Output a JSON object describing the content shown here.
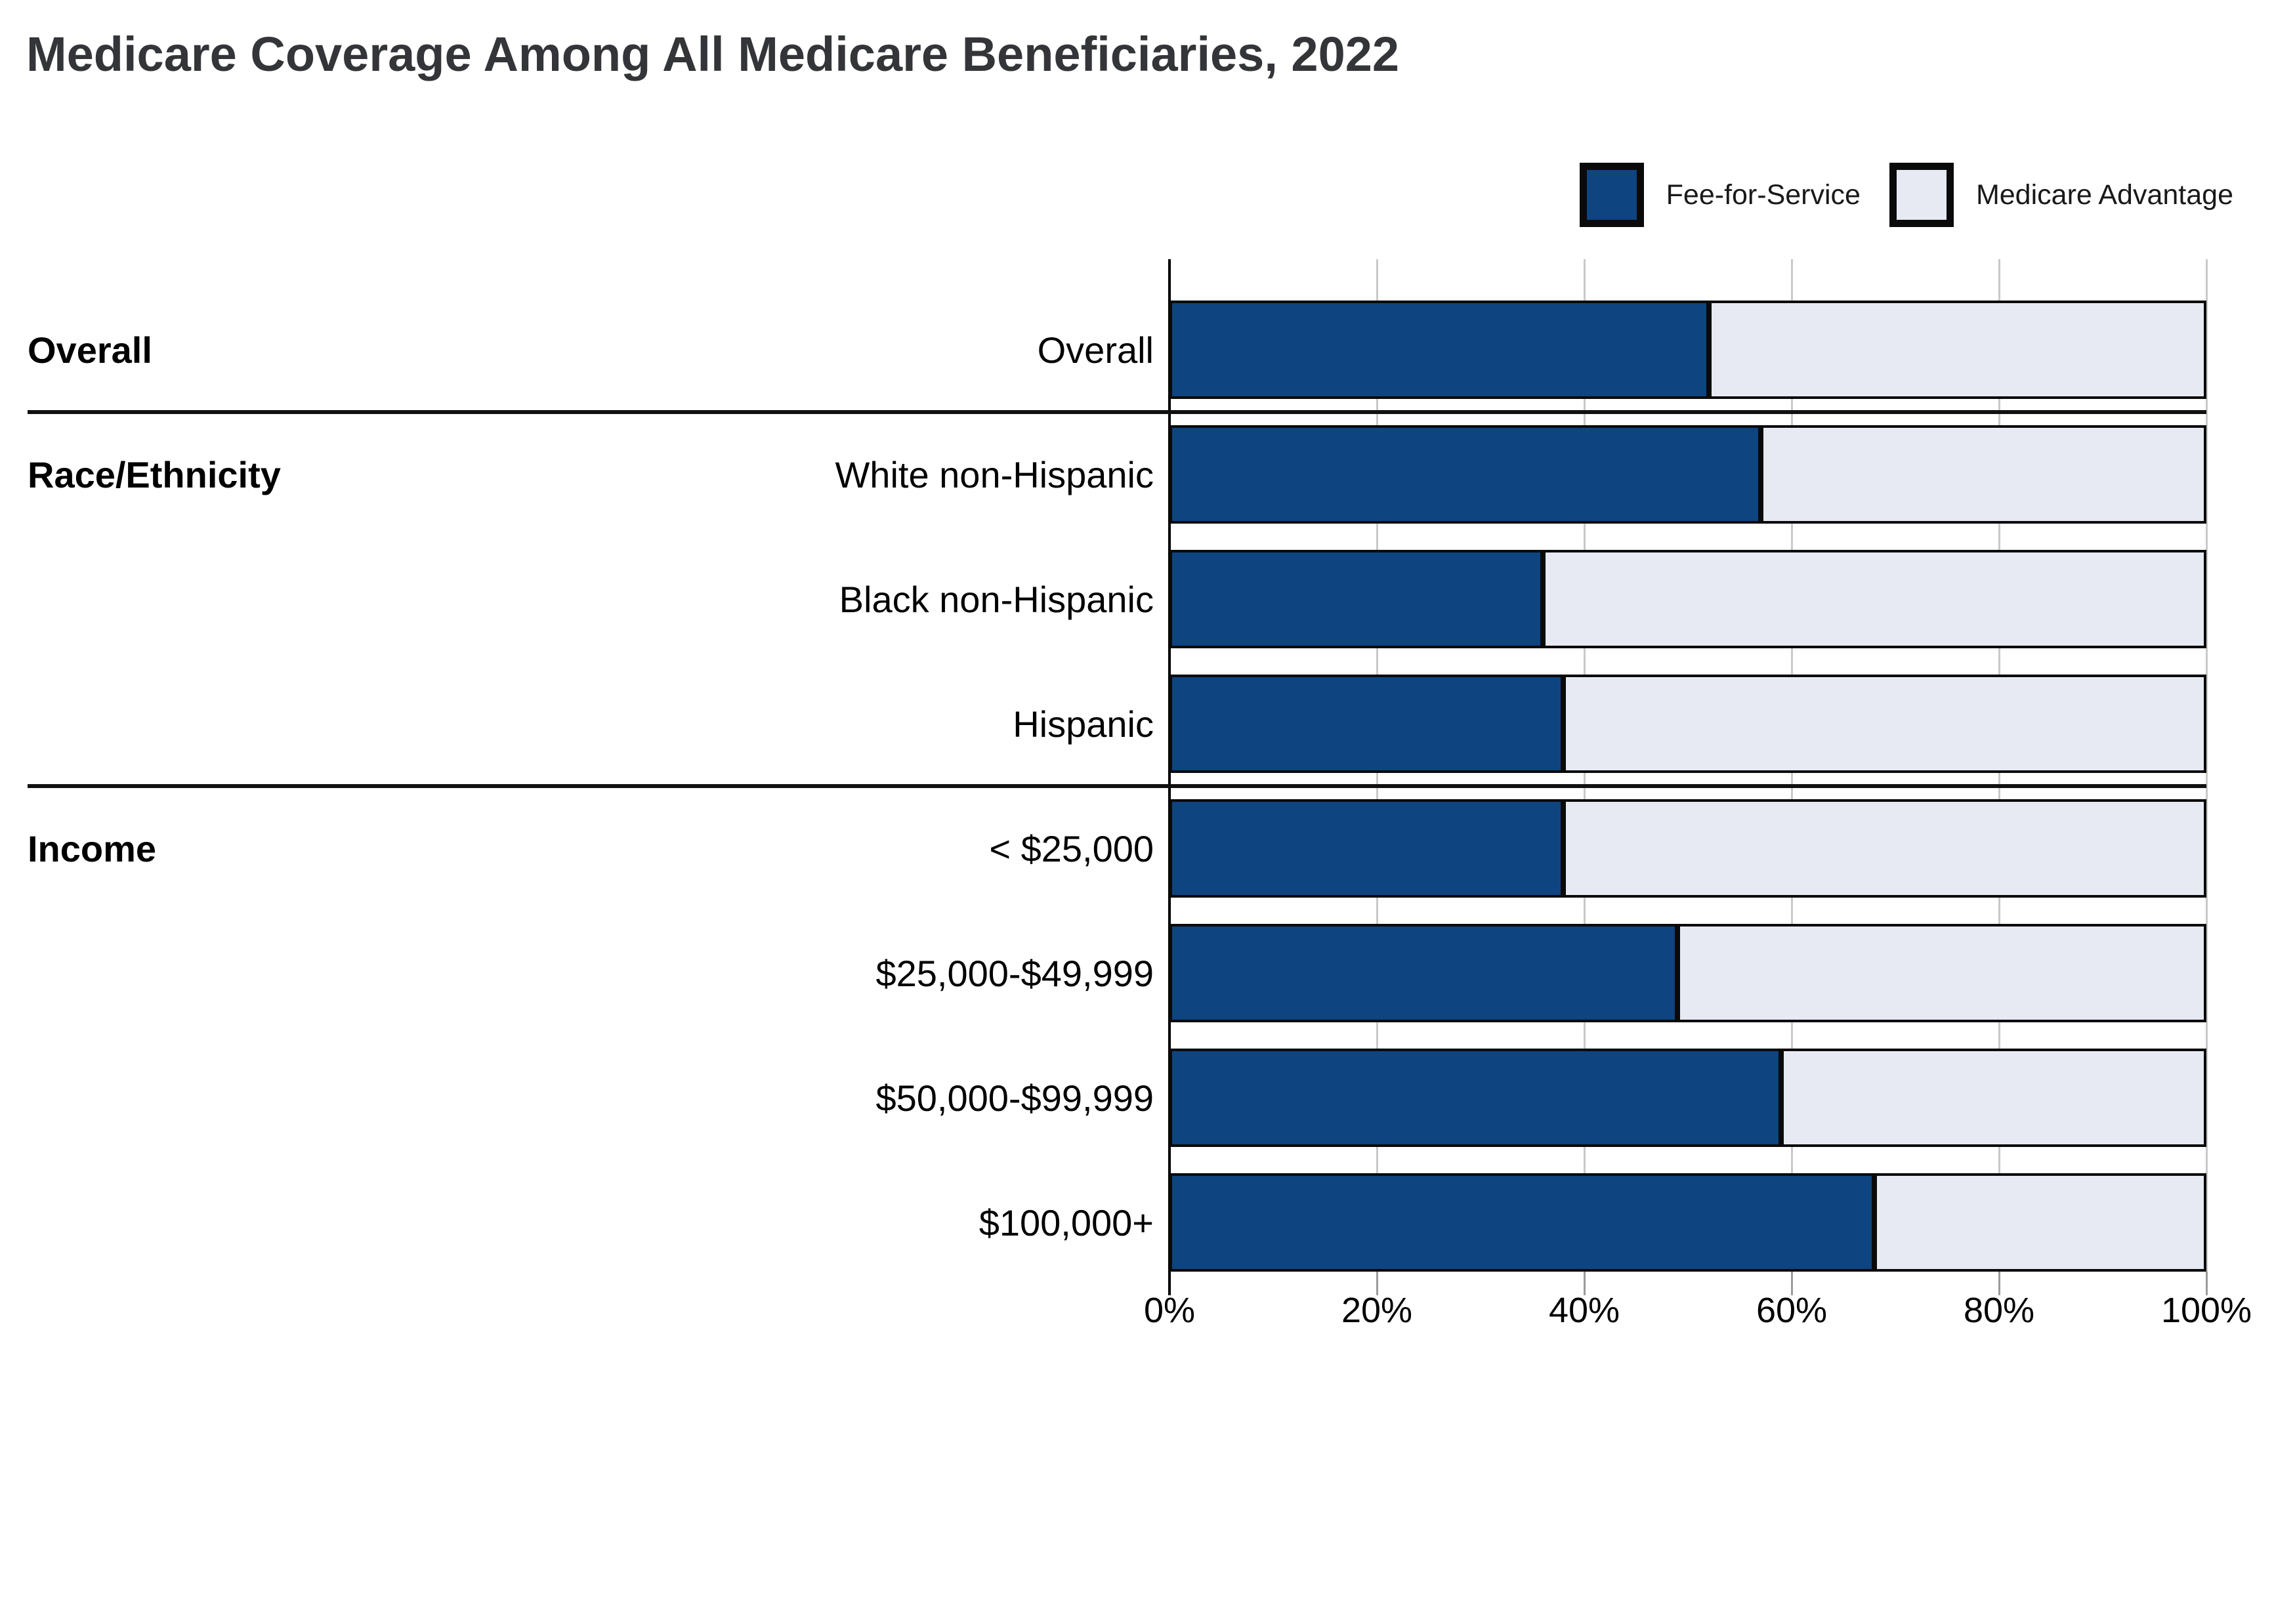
{
  "title": "Medicare Coverage Among All Medicare Beneficiaries, 2022",
  "legend": {
    "items": [
      {
        "label": "Fee-for-Service",
        "color": "#0E4480"
      },
      {
        "label": "Medicare Advantage",
        "color": "#E7EAF3"
      }
    ]
  },
  "colors": {
    "fee_for_service": "#0E4480",
    "medicare_advantage": "#E7EAF3",
    "bar_border": "#0a0a0a",
    "gridline": "#c9c9c9",
    "divider": "#111111",
    "title_text": "#333538"
  },
  "chart_data": {
    "type": "bar",
    "orientation": "horizontal",
    "stacked": true,
    "title": "Medicare Coverage Among All Medicare Beneficiaries, 2022",
    "categories": [
      "Overall",
      "White non-Hispanic",
      "Black non-Hispanic",
      "Hispanic",
      "< $25,000",
      "$25,000-$49,999",
      "$50,000-$99,999",
      "$100,000+"
    ],
    "groups": [
      {
        "label": "Overall",
        "first_row": 0
      },
      {
        "label": "Race/Ethnicity",
        "first_row": 1
      },
      {
        "label": "Income",
        "first_row": 4
      }
    ],
    "section_divider_after_rows": [
      0,
      3
    ],
    "series": [
      {
        "name": "Fee-for-Service",
        "values": [
          52,
          57,
          36,
          38,
          38,
          49,
          59,
          68
        ]
      },
      {
        "name": "Medicare Advantage",
        "values": [
          48,
          43,
          64,
          62,
          62,
          51,
          41,
          32
        ]
      }
    ],
    "x_ticks": [
      "0%",
      "20%",
      "40%",
      "60%",
      "80%",
      "100%"
    ],
    "xlim": [
      0,
      100
    ],
    "xlabel": "",
    "ylabel": "",
    "grid": true,
    "legend_position": "top-right"
  }
}
